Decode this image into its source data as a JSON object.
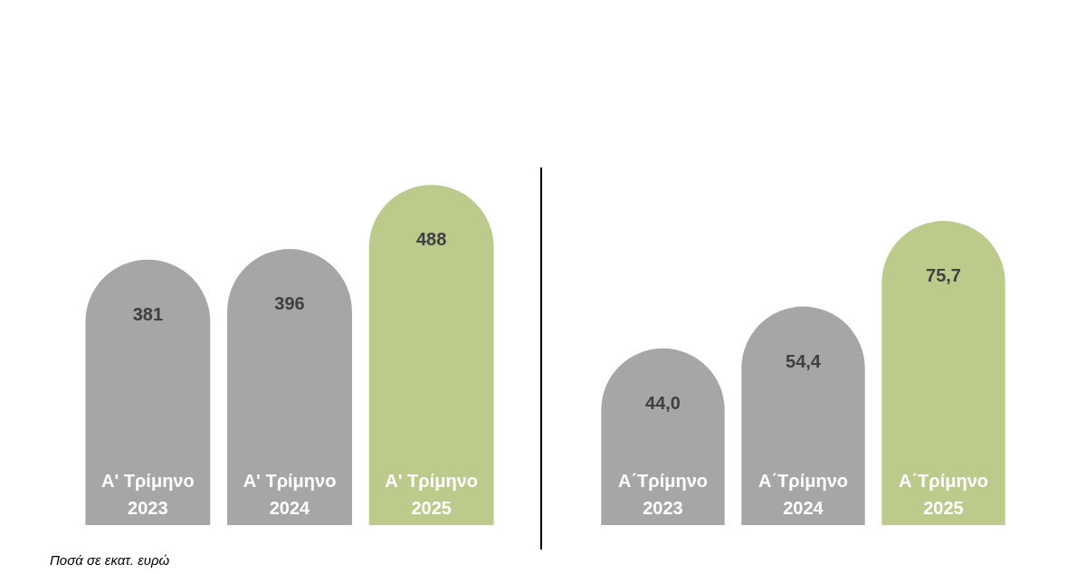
{
  "chart_data": [
    {
      "type": "bar",
      "categories": [
        "Α' Τρίμηνο\n2023",
        "Α' Τρίμηνο\n2024",
        "Α' Τρίμηνο\n2025"
      ],
      "values": [
        381,
        396,
        488
      ],
      "colors": [
        "#a6a6a6",
        "#a6a6a6",
        "#bccb8b"
      ],
      "value_labels": [
        "381",
        "396",
        "488"
      ],
      "annotations": [
        "Ποσά σε εκατ. ευρώ"
      ]
    },
    {
      "type": "bar",
      "categories": [
        "Α΄Τρίμηνο\n2023",
        "Α΄Τρίμηνο\n2024",
        "Α΄Τρίμηνο\n2025"
      ],
      "values": [
        44.0,
        54.4,
        75.7
      ],
      "colors": [
        "#a6a6a6",
        "#a6a6a6",
        "#bccb8b"
      ],
      "value_labels": [
        "44,0",
        "54,4",
        "75,7"
      ]
    }
  ]
}
